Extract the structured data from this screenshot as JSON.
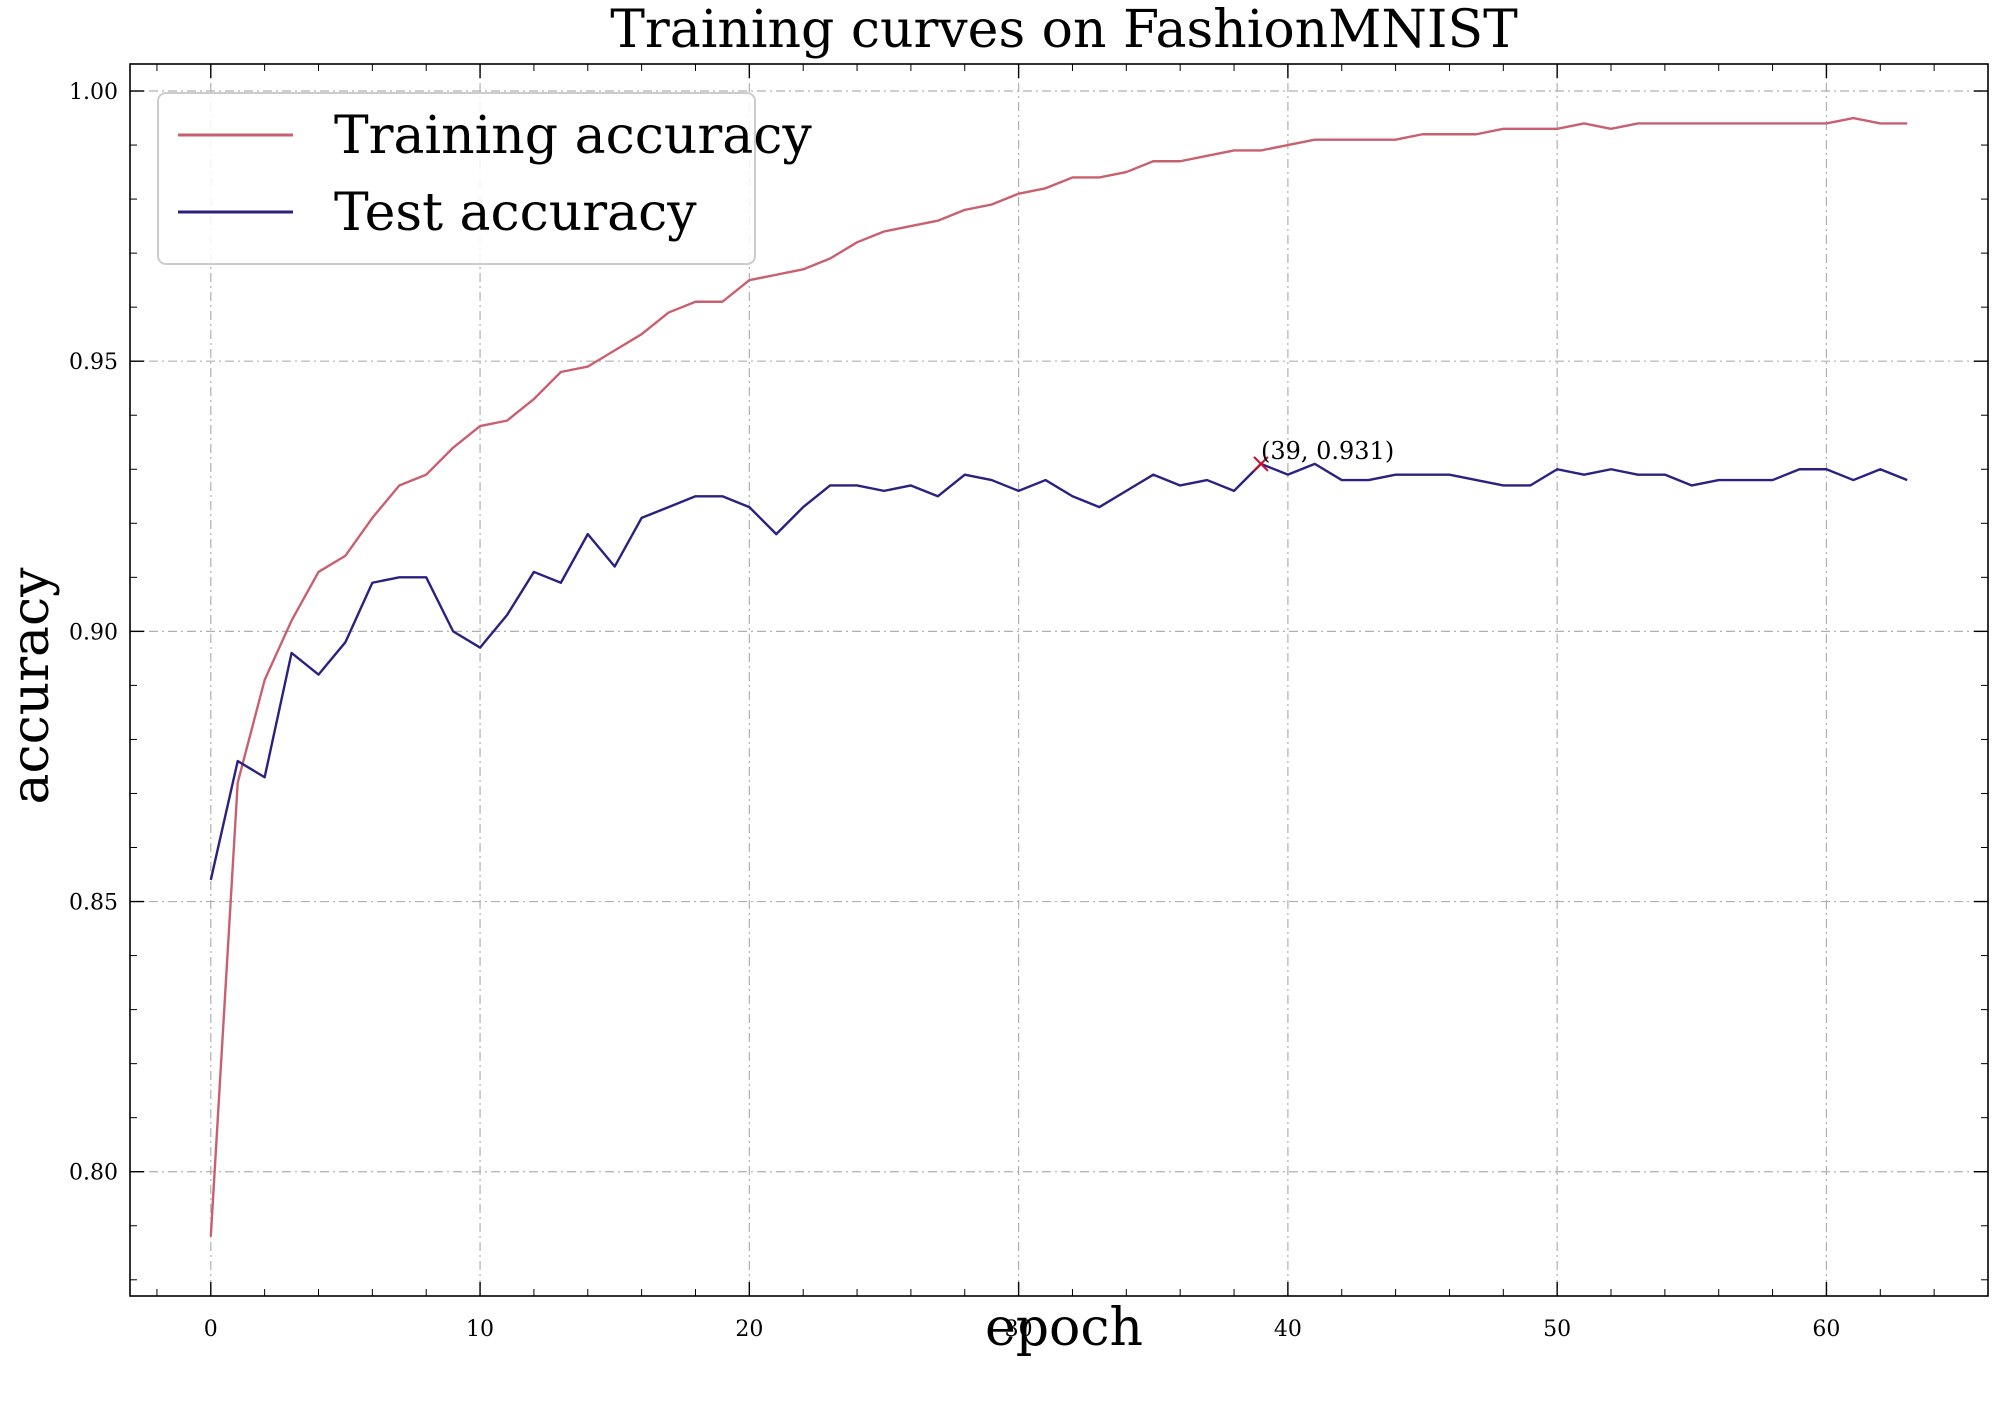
{
  "chart_data": {
    "type": "line",
    "title": "Training curves on FashionMNIST",
    "xlabel": "epoch",
    "ylabel": "accuracy",
    "xlim": [
      -3,
      66
    ],
    "ylim": [
      0.777,
      1.005
    ],
    "x_ticks": [
      0,
      10,
      20,
      30,
      40,
      50,
      60
    ],
    "y_ticks": [
      0.8,
      0.85,
      0.9,
      0.95,
      1.0
    ],
    "x_tick_labels": [
      "0",
      "10",
      "20",
      "30",
      "40",
      "50",
      "60"
    ],
    "y_tick_labels": [
      "0.80",
      "0.85",
      "0.90",
      "0.95",
      "1.00"
    ],
    "grid": true,
    "legend_position": "upper-left",
    "x": [
      0,
      1,
      2,
      3,
      4,
      5,
      6,
      7,
      8,
      9,
      10,
      11,
      12,
      13,
      14,
      15,
      16,
      17,
      18,
      19,
      20,
      21,
      22,
      23,
      24,
      25,
      26,
      27,
      28,
      29,
      30,
      31,
      32,
      33,
      34,
      35,
      36,
      37,
      38,
      39,
      40,
      41,
      42,
      43,
      44,
      45,
      46,
      47,
      48,
      49,
      50,
      51,
      52,
      53,
      54,
      55,
      56,
      57,
      58,
      59,
      60,
      61,
      62,
      63
    ],
    "series": [
      {
        "name": "Training accuracy",
        "color": "#c8606f",
        "values": [
          0.788,
          0.872,
          0.891,
          0.902,
          0.911,
          0.914,
          0.921,
          0.927,
          0.929,
          0.934,
          0.938,
          0.939,
          0.943,
          0.948,
          0.949,
          0.952,
          0.955,
          0.959,
          0.961,
          0.961,
          0.965,
          0.966,
          0.967,
          0.969,
          0.972,
          0.974,
          0.975,
          0.976,
          0.978,
          0.979,
          0.981,
          0.982,
          0.984,
          0.984,
          0.985,
          0.987,
          0.987,
          0.988,
          0.989,
          0.989,
          0.99,
          0.991,
          0.991,
          0.991,
          0.991,
          0.992,
          0.992,
          0.992,
          0.993,
          0.993,
          0.993,
          0.994,
          0.993,
          0.994,
          0.994,
          0.994,
          0.994,
          0.994,
          0.994,
          0.994,
          0.994,
          0.995,
          0.994,
          0.994
        ]
      },
      {
        "name": "Test accuracy",
        "color": "#2a2180",
        "values": [
          0.854,
          0.876,
          0.873,
          0.896,
          0.892,
          0.898,
          0.909,
          0.91,
          0.91,
          0.9,
          0.897,
          0.903,
          0.911,
          0.909,
          0.918,
          0.912,
          0.921,
          0.923,
          0.925,
          0.925,
          0.923,
          0.918,
          0.923,
          0.927,
          0.927,
          0.926,
          0.927,
          0.925,
          0.929,
          0.928,
          0.926,
          0.928,
          0.925,
          0.923,
          0.926,
          0.929,
          0.927,
          0.928,
          0.926,
          0.931,
          0.929,
          0.931,
          0.928,
          0.928,
          0.929,
          0.929,
          0.929,
          0.928,
          0.927,
          0.927,
          0.93,
          0.929,
          0.93,
          0.929,
          0.929,
          0.927,
          0.928,
          0.928,
          0.928,
          0.93,
          0.93,
          0.928,
          0.93,
          0.928
        ]
      }
    ],
    "annotation": {
      "x": 39,
      "y": 0.931,
      "text": "(39, 0.931)",
      "marker": "x",
      "color": "#c8102e"
    }
  }
}
